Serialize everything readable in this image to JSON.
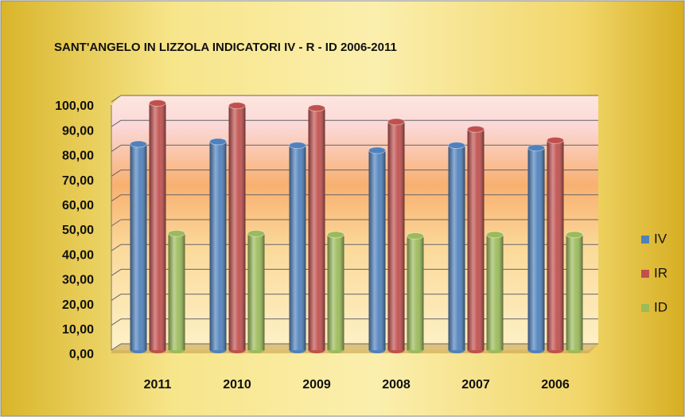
{
  "chart_data": {
    "type": "bar",
    "title": "SANT'ANGELO IN LIZZOLA INDICATORI  IV   - R   - ID   2006-2011",
    "categories": [
      "2011",
      "2010",
      "2009",
      "2008",
      "2007",
      "2006"
    ],
    "series": [
      {
        "name": "IV",
        "color": "#4f81bd",
        "values": [
          83,
          84,
          82.5,
          80.5,
          82.5,
          81.5
        ]
      },
      {
        "name": "IR",
        "color": "#c0504d",
        "values": [
          99.5,
          98.5,
          97.5,
          92,
          89,
          84.5
        ]
      },
      {
        "name": "ID",
        "color": "#9bbb59",
        "values": [
          47,
          47,
          46.5,
          46,
          46.5,
          46.5
        ]
      }
    ],
    "ylim": [
      0,
      100
    ],
    "yticks": [
      {
        "value": 0,
        "label": "0,00"
      },
      {
        "value": 10,
        "label": "10,00"
      },
      {
        "value": 20,
        "label": "20,00"
      },
      {
        "value": 30,
        "label": "30,00"
      },
      {
        "value": 40,
        "label": "40,00"
      },
      {
        "value": 50,
        "label": "50,00"
      },
      {
        "value": 60,
        "label": "60,00"
      },
      {
        "value": 70,
        "label": "70,00"
      },
      {
        "value": 80,
        "label": "80,00"
      },
      {
        "value": 90,
        "label": "90,00"
      },
      {
        "value": 100,
        "label": "100,00"
      }
    ],
    "grid": true,
    "legend": "right"
  }
}
